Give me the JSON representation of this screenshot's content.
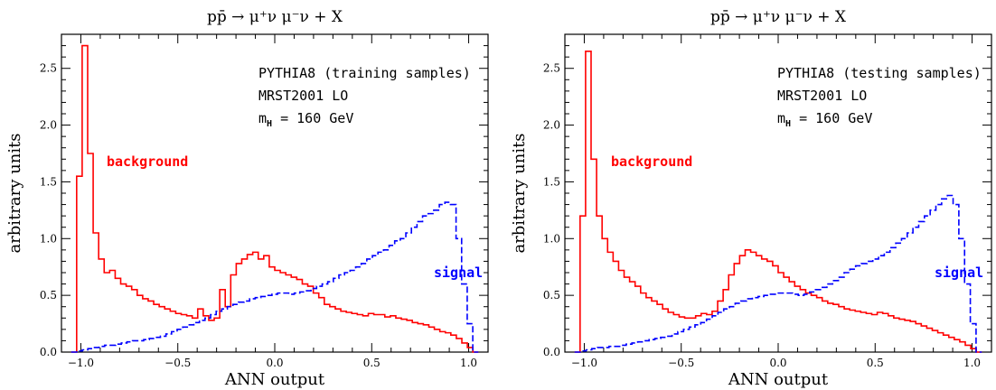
{
  "chart_data": [
    {
      "type": "line",
      "title": "pp̄ → μ⁺ν μ⁻ν + X",
      "xlabel": "ANN output",
      "ylabel": "arbitrary units",
      "xlim": [
        -1.1,
        1.1
      ],
      "ylim": [
        0,
        2.8
      ],
      "xticks": [
        -1.0,
        -0.5,
        0.0,
        0.5,
        1.0
      ],
      "xtick_labels": [
        "−1.0",
        "−0.5",
        "0.0",
        "0.5",
        "1.0"
      ],
      "yticks": [
        0.0,
        0.5,
        1.0,
        1.5,
        2.0,
        2.5
      ],
      "ytick_labels": [
        "0.0",
        "0.5",
        "1.0",
        "1.5",
        "2.0",
        "2.5"
      ],
      "annotations": [
        "PYTHIA8 (training samples)",
        "MRST2001 LO",
        "m_H = 160 GeV"
      ],
      "bin_edges": [
        -1.05,
        1.05
      ],
      "series": [
        {
          "name": "background",
          "color": "#ff0000",
          "style": "solid",
          "values": [
            0.0,
            1.55,
            2.7,
            1.75,
            1.05,
            0.82,
            0.7,
            0.72,
            0.65,
            0.6,
            0.58,
            0.55,
            0.5,
            0.47,
            0.45,
            0.42,
            0.4,
            0.38,
            0.36,
            0.34,
            0.33,
            0.32,
            0.3,
            0.38,
            0.32,
            0.28,
            0.3,
            0.55,
            0.4,
            0.68,
            0.78,
            0.82,
            0.86,
            0.88,
            0.82,
            0.85,
            0.75,
            0.72,
            0.7,
            0.68,
            0.66,
            0.64,
            0.6,
            0.58,
            0.52,
            0.48,
            0.42,
            0.4,
            0.38,
            0.36,
            0.35,
            0.34,
            0.33,
            0.32,
            0.34,
            0.33,
            0.33,
            0.31,
            0.32,
            0.3,
            0.29,
            0.28,
            0.26,
            0.25,
            0.24,
            0.22,
            0.2,
            0.18,
            0.17,
            0.15,
            0.12,
            0.08,
            0.04,
            0.0
          ]
        },
        {
          "name": "signal",
          "color": "#0000ff",
          "style": "dashed",
          "values": [
            0.0,
            0.01,
            0.02,
            0.03,
            0.04,
            0.05,
            0.06,
            0.06,
            0.07,
            0.08,
            0.09,
            0.1,
            0.1,
            0.11,
            0.12,
            0.13,
            0.14,
            0.16,
            0.18,
            0.2,
            0.22,
            0.24,
            0.26,
            0.28,
            0.3,
            0.33,
            0.36,
            0.38,
            0.4,
            0.42,
            0.44,
            0.45,
            0.47,
            0.48,
            0.49,
            0.5,
            0.51,
            0.52,
            0.52,
            0.51,
            0.52,
            0.53,
            0.54,
            0.56,
            0.58,
            0.6,
            0.62,
            0.65,
            0.68,
            0.7,
            0.72,
            0.75,
            0.78,
            0.82,
            0.85,
            0.88,
            0.9,
            0.94,
            0.98,
            1.0,
            1.05,
            1.1,
            1.15,
            1.2,
            1.22,
            1.25,
            1.3,
            1.32,
            1.3,
            1.0,
            0.6,
            0.25,
            0.0
          ]
        }
      ],
      "series_labels": [
        "background",
        "signal"
      ]
    },
    {
      "type": "line",
      "title": "pp̄ → μ⁺ν μ⁻ν + X",
      "xlabel": "ANN output",
      "ylabel": "arbitrary units",
      "xlim": [
        -1.1,
        1.1
      ],
      "ylim": [
        0,
        2.8
      ],
      "xticks": [
        -1.0,
        -0.5,
        0.0,
        0.5,
        1.0
      ],
      "xtick_labels": [
        "−1.0",
        "−0.5",
        "0.0",
        "0.5",
        "1.0"
      ],
      "yticks": [
        0.0,
        0.5,
        1.0,
        1.5,
        2.0,
        2.5
      ],
      "ytick_labels": [
        "0.0",
        "0.5",
        "1.0",
        "1.5",
        "2.0",
        "2.5"
      ],
      "annotations": [
        "PYTHIA8 (testing samples)",
        "MRST2001 LO",
        "m_H = 160 GeV"
      ],
      "bin_edges": [
        -1.05,
        1.05
      ],
      "series": [
        {
          "name": "background",
          "color": "#ff0000",
          "style": "solid",
          "values": [
            0.0,
            1.2,
            2.65,
            1.7,
            1.2,
            1.0,
            0.88,
            0.8,
            0.72,
            0.66,
            0.62,
            0.58,
            0.52,
            0.48,
            0.45,
            0.42,
            0.38,
            0.35,
            0.33,
            0.31,
            0.3,
            0.3,
            0.32,
            0.34,
            0.33,
            0.36,
            0.45,
            0.55,
            0.68,
            0.78,
            0.85,
            0.9,
            0.88,
            0.85,
            0.82,
            0.8,
            0.76,
            0.7,
            0.66,
            0.62,
            0.58,
            0.55,
            0.52,
            0.5,
            0.48,
            0.45,
            0.43,
            0.42,
            0.4,
            0.38,
            0.37,
            0.36,
            0.35,
            0.34,
            0.33,
            0.35,
            0.34,
            0.32,
            0.3,
            0.29,
            0.28,
            0.27,
            0.25,
            0.23,
            0.21,
            0.19,
            0.17,
            0.15,
            0.13,
            0.11,
            0.09,
            0.06,
            0.03,
            0.0
          ]
        },
        {
          "name": "signal",
          "color": "#0000ff",
          "style": "dashed",
          "values": [
            0.0,
            0.01,
            0.02,
            0.03,
            0.04,
            0.04,
            0.05,
            0.05,
            0.06,
            0.07,
            0.08,
            0.09,
            0.1,
            0.11,
            0.12,
            0.13,
            0.14,
            0.16,
            0.18,
            0.2,
            0.22,
            0.24,
            0.26,
            0.29,
            0.32,
            0.35,
            0.38,
            0.4,
            0.43,
            0.45,
            0.47,
            0.48,
            0.49,
            0.5,
            0.51,
            0.52,
            0.52,
            0.52,
            0.51,
            0.5,
            0.51,
            0.53,
            0.55,
            0.57,
            0.6,
            0.63,
            0.66,
            0.7,
            0.73,
            0.76,
            0.78,
            0.8,
            0.82,
            0.85,
            0.88,
            0.92,
            0.96,
            1.0,
            1.05,
            1.1,
            1.15,
            1.2,
            1.25,
            1.3,
            1.35,
            1.38,
            1.3,
            1.0,
            0.6,
            0.25,
            0.0
          ]
        }
      ],
      "series_labels": [
        "background",
        "signal"
      ]
    }
  ]
}
